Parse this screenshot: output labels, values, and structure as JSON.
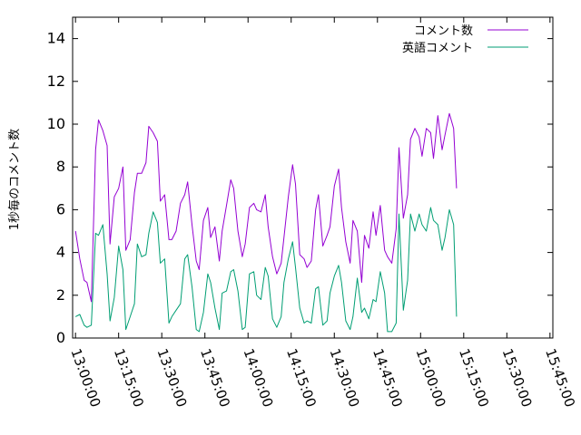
{
  "chart_data": {
    "type": "line",
    "title": "",
    "xlabel": "",
    "ylabel": "1秒毎のコメント数",
    "xlim": [
      "12:59:00",
      "15:46:00"
    ],
    "ylim": [
      0,
      15
    ],
    "grid": false,
    "legend_position": "top-right",
    "x_ticks": [
      "13:00:00",
      "13:15:00",
      "13:30:00",
      "13:45:00",
      "14:00:00",
      "14:15:00",
      "14:30:00",
      "14:45:00",
      "15:00:00",
      "15:15:00",
      "15:30:00",
      "15:45:00"
    ],
    "y_ticks": [
      0,
      2,
      4,
      6,
      8,
      10,
      12,
      14
    ],
    "series": [
      {
        "name": "コメント数",
        "color": "#9400d3",
        "values": [
          [
            "13:00:00",
            5.0
          ],
          [
            "13:01:30",
            3.7
          ],
          [
            "13:03:00",
            2.7
          ],
          [
            "13:04:00",
            2.6
          ],
          [
            "13:05:30",
            1.7
          ],
          [
            "13:07:00",
            8.8
          ],
          [
            "13:08:00",
            10.2
          ],
          [
            "13:09:30",
            9.7
          ],
          [
            "13:11:00",
            9.0
          ],
          [
            "13:12:00",
            4.4
          ],
          [
            "13:13:30",
            6.6
          ],
          [
            "13:15:00",
            7.0
          ],
          [
            "13:16:30",
            8.0
          ],
          [
            "13:17:30",
            4.1
          ],
          [
            "13:19:00",
            4.6
          ],
          [
            "13:20:30",
            6.8
          ],
          [
            "13:21:30",
            7.7
          ],
          [
            "13:23:00",
            7.7
          ],
          [
            "13:24:30",
            8.2
          ],
          [
            "13:25:30",
            9.9
          ],
          [
            "13:27:00",
            9.6
          ],
          [
            "13:28:30",
            9.2
          ],
          [
            "13:29:30",
            6.4
          ],
          [
            "13:31:00",
            6.7
          ],
          [
            "13:32:30",
            4.6
          ],
          [
            "13:33:30",
            4.6
          ],
          [
            "13:35:00",
            5.0
          ],
          [
            "13:36:30",
            6.3
          ],
          [
            "13:38:00",
            6.7
          ],
          [
            "13:39:00",
            7.3
          ],
          [
            "13:40:30",
            5.3
          ],
          [
            "13:42:00",
            3.6
          ],
          [
            "13:43:00",
            3.2
          ],
          [
            "13:44:30",
            5.5
          ],
          [
            "13:46:00",
            6.1
          ],
          [
            "13:47:00",
            4.7
          ],
          [
            "13:48:30",
            5.2
          ],
          [
            "13:50:00",
            3.6
          ],
          [
            "13:51:00",
            5.0
          ],
          [
            "13:52:30",
            6.2
          ],
          [
            "13:54:00",
            7.4
          ],
          [
            "13:55:00",
            7.0
          ],
          [
            "13:56:30",
            5.0
          ],
          [
            "13:58:00",
            3.8
          ],
          [
            "13:59:00",
            4.4
          ],
          [
            "14:00:30",
            6.1
          ],
          [
            "14:02:00",
            6.3
          ],
          [
            "14:03:00",
            6.0
          ],
          [
            "14:04:30",
            5.9
          ],
          [
            "14:06:00",
            6.7
          ],
          [
            "14:07:00",
            5.2
          ],
          [
            "14:08:30",
            3.8
          ],
          [
            "14:10:00",
            3.0
          ],
          [
            "14:11:30",
            3.5
          ],
          [
            "14:12:30",
            4.7
          ],
          [
            "14:14:00",
            6.6
          ],
          [
            "14:15:30",
            8.1
          ],
          [
            "14:16:30",
            7.2
          ],
          [
            "14:18:00",
            3.9
          ],
          [
            "14:19:30",
            3.7
          ],
          [
            "14:20:30",
            3.3
          ],
          [
            "14:22:00",
            3.6
          ],
          [
            "14:23:30",
            6.0
          ],
          [
            "14:24:30",
            6.7
          ],
          [
            "14:26:00",
            4.3
          ],
          [
            "14:27:30",
            4.8
          ],
          [
            "14:28:30",
            5.2
          ],
          [
            "14:30:00",
            7.1
          ],
          [
            "14:31:30",
            7.9
          ],
          [
            "14:32:30",
            6.1
          ],
          [
            "14:34:00",
            4.5
          ],
          [
            "14:35:30",
            3.5
          ],
          [
            "14:36:30",
            5.5
          ],
          [
            "14:38:00",
            5.0
          ],
          [
            "14:39:30",
            2.6
          ],
          [
            "14:40:30",
            4.8
          ],
          [
            "14:42:00",
            4.2
          ],
          [
            "14:43:30",
            5.9
          ],
          [
            "14:44:30",
            4.8
          ],
          [
            "14:46:00",
            6.2
          ],
          [
            "14:47:30",
            4.1
          ],
          [
            "14:48:30",
            3.8
          ],
          [
            "14:50:00",
            3.5
          ],
          [
            "14:51:30",
            5.1
          ],
          [
            "14:52:30",
            8.9
          ],
          [
            "14:54:00",
            5.6
          ],
          [
            "14:55:30",
            6.7
          ],
          [
            "14:56:30",
            9.3
          ],
          [
            "14:58:00",
            9.8
          ],
          [
            "14:59:30",
            9.4
          ],
          [
            "15:00:30",
            8.5
          ],
          [
            "15:02:00",
            9.8
          ],
          [
            "15:03:30",
            9.6
          ],
          [
            "15:04:30",
            8.4
          ],
          [
            "15:06:00",
            10.4
          ],
          [
            "15:07:30",
            8.8
          ],
          [
            "15:08:30",
            9.5
          ],
          [
            "15:10:00",
            10.5
          ],
          [
            "15:11:30",
            9.8
          ],
          [
            "15:12:30",
            7.0
          ]
        ]
      },
      {
        "name": "英語コメント",
        "color": "#009e73",
        "values": [
          [
            "13:00:00",
            1.0
          ],
          [
            "13:01:30",
            1.1
          ],
          [
            "13:03:00",
            0.6
          ],
          [
            "13:04:00",
            0.5
          ],
          [
            "13:05:30",
            0.6
          ],
          [
            "13:07:00",
            4.9
          ],
          [
            "13:08:00",
            4.8
          ],
          [
            "13:09:30",
            5.3
          ],
          [
            "13:11:00",
            3.0
          ],
          [
            "13:12:00",
            0.8
          ],
          [
            "13:13:30",
            1.9
          ],
          [
            "13:15:00",
            4.3
          ],
          [
            "13:16:30",
            3.2
          ],
          [
            "13:17:30",
            0.4
          ],
          [
            "13:19:00",
            1.0
          ],
          [
            "13:20:30",
            1.6
          ],
          [
            "13:21:30",
            4.4
          ],
          [
            "13:23:00",
            3.8
          ],
          [
            "13:24:30",
            3.9
          ],
          [
            "13:25:30",
            4.9
          ],
          [
            "13:27:00",
            5.9
          ],
          [
            "13:28:30",
            5.4
          ],
          [
            "13:29:30",
            3.5
          ],
          [
            "13:31:00",
            3.7
          ],
          [
            "13:32:30",
            0.7
          ],
          [
            "13:33:30",
            1.0
          ],
          [
            "13:35:00",
            1.3
          ],
          [
            "13:36:30",
            1.6
          ],
          [
            "13:38:00",
            3.7
          ],
          [
            "13:39:00",
            3.9
          ],
          [
            "13:40:30",
            2.4
          ],
          [
            "13:42:00",
            0.4
          ],
          [
            "13:43:00",
            0.3
          ],
          [
            "13:44:30",
            1.2
          ],
          [
            "13:46:00",
            3.0
          ],
          [
            "13:47:00",
            2.6
          ],
          [
            "13:48:30",
            1.4
          ],
          [
            "13:50:00",
            0.4
          ],
          [
            "13:51:00",
            2.1
          ],
          [
            "13:52:30",
            2.2
          ],
          [
            "13:54:00",
            3.1
          ],
          [
            "13:55:00",
            3.2
          ],
          [
            "13:56:30",
            2.2
          ],
          [
            "13:58:00",
            0.4
          ],
          [
            "13:59:00",
            0.5
          ],
          [
            "14:00:30",
            3.0
          ],
          [
            "14:02:00",
            3.1
          ],
          [
            "14:03:00",
            2.0
          ],
          [
            "14:04:30",
            1.8
          ],
          [
            "14:06:00",
            3.3
          ],
          [
            "14:07:00",
            2.9
          ],
          [
            "14:08:30",
            0.9
          ],
          [
            "14:10:00",
            0.5
          ],
          [
            "14:11:30",
            1.0
          ],
          [
            "14:12:30",
            2.6
          ],
          [
            "14:14:00",
            3.7
          ],
          [
            "14:15:30",
            4.5
          ],
          [
            "14:16:30",
            3.3
          ],
          [
            "14:18:00",
            1.4
          ],
          [
            "14:19:30",
            0.7
          ],
          [
            "14:20:30",
            0.8
          ],
          [
            "14:22:00",
            0.7
          ],
          [
            "14:23:30",
            2.3
          ],
          [
            "14:24:30",
            2.4
          ],
          [
            "14:26:00",
            0.6
          ],
          [
            "14:27:30",
            0.8
          ],
          [
            "14:28:30",
            2.1
          ],
          [
            "14:30:00",
            2.9
          ],
          [
            "14:31:30",
            3.4
          ],
          [
            "14:32:30",
            2.6
          ],
          [
            "14:34:00",
            0.8
          ],
          [
            "14:35:30",
            0.4
          ],
          [
            "14:36:30",
            1.0
          ],
          [
            "14:38:00",
            2.8
          ],
          [
            "14:39:30",
            1.2
          ],
          [
            "14:40:30",
            1.4
          ],
          [
            "14:42:00",
            0.9
          ],
          [
            "14:43:30",
            1.8
          ],
          [
            "14:44:30",
            1.7
          ],
          [
            "14:46:00",
            3.1
          ],
          [
            "14:47:30",
            2.1
          ],
          [
            "14:48:30",
            0.3
          ],
          [
            "14:50:00",
            0.3
          ],
          [
            "14:51:30",
            0.7
          ],
          [
            "14:52:30",
            5.8
          ],
          [
            "14:54:00",
            1.3
          ],
          [
            "14:55:30",
            2.7
          ],
          [
            "14:56:30",
            5.8
          ],
          [
            "14:58:00",
            5.0
          ],
          [
            "14:59:30",
            5.8
          ],
          [
            "15:00:30",
            5.3
          ],
          [
            "15:02:00",
            5.0
          ],
          [
            "15:03:30",
            6.1
          ],
          [
            "15:04:30",
            5.5
          ],
          [
            "15:06:00",
            5.3
          ],
          [
            "15:07:30",
            4.1
          ],
          [
            "15:08:30",
            4.7
          ],
          [
            "15:10:00",
            6.0
          ],
          [
            "15:11:30",
            5.3
          ],
          [
            "15:12:30",
            1.0
          ]
        ]
      }
    ]
  }
}
